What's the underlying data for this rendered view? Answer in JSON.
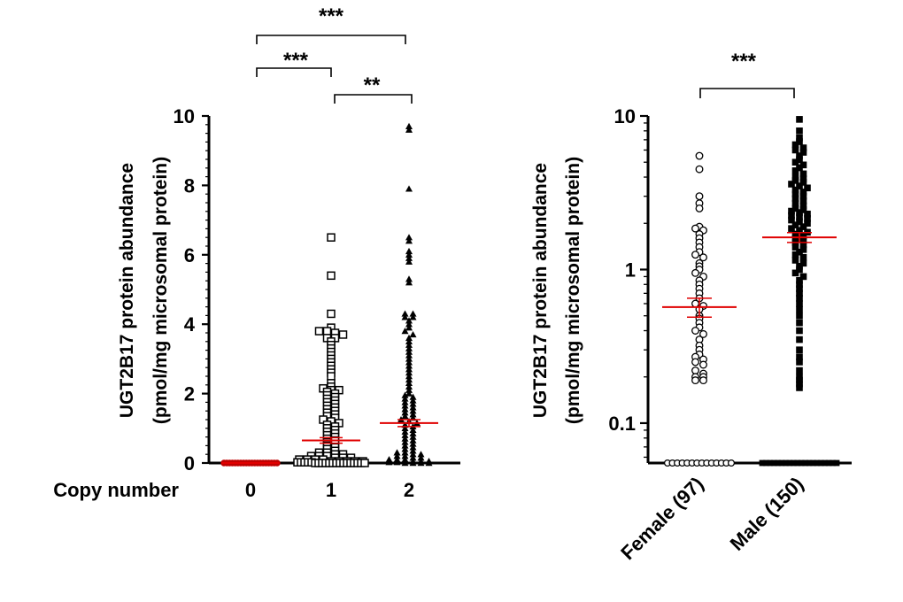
{
  "chart_data": [
    {
      "type": "scatter",
      "title": "",
      "xlabel": "Copy number",
      "ylabel": "UGT2B17 protein abundance",
      "ylabel_sub": "(pmol/mg microsomal protein)",
      "categories": [
        "0",
        "1",
        "2"
      ],
      "ylim": [
        0,
        10
      ],
      "yticks": [
        "0",
        "2",
        "4",
        "6",
        "8",
        "10"
      ],
      "significance": [
        {
          "from": "0",
          "to": "2",
          "label": "***"
        },
        {
          "from": "0",
          "to": "1",
          "label": "***"
        },
        {
          "from": "1",
          "to": "2",
          "label": "**"
        }
      ],
      "series": [
        {
          "name": "0",
          "marker": "circle-filled",
          "n": 20,
          "mean": 0.0,
          "sem": 0.0,
          "values": [
            0,
            0,
            0,
            0,
            0,
            0,
            0,
            0,
            0,
            0,
            0,
            0,
            0,
            0,
            0,
            0,
            0,
            0,
            0,
            0
          ]
        },
        {
          "name": "1",
          "marker": "square-open",
          "n": 140,
          "mean": 0.65,
          "sem": 0.08,
          "values": [
            6.5,
            5.4,
            4.3,
            3.9,
            3.8,
            3.8,
            3.75,
            3.7,
            3.6,
            3.6,
            3.5,
            3.4,
            3.3,
            3.2,
            3.1,
            3.0,
            2.9,
            2.8,
            2.7,
            2.6,
            2.5,
            2.3,
            2.2,
            2.15,
            2.1,
            2.1,
            2.05,
            2.0,
            1.95,
            1.9,
            1.85,
            1.8,
            1.75,
            1.7,
            1.65,
            1.6,
            1.55,
            1.5,
            1.45,
            1.4,
            1.35,
            1.3,
            1.25,
            1.2,
            1.15,
            1.1,
            1.05,
            1.0,
            0.95,
            0.9,
            0.85,
            0.8,
            0.75,
            0.7,
            0.65,
            0.6,
            0.55,
            0.5,
            0.45,
            0.4,
            0.35,
            0.3,
            0.3,
            0.25,
            0.25,
            0.2,
            0.2,
            0.2,
            0.15,
            0.15,
            0.15,
            0.1,
            0.1,
            0.1,
            0.1,
            0.05,
            0.05,
            0.05,
            0.05,
            0.05,
            0.02,
            0.02,
            0.02,
            0.02,
            0.02,
            0,
            0,
            0,
            0,
            0,
            0,
            0,
            0,
            0,
            0,
            0,
            0,
            0,
            0,
            0
          ]
        },
        {
          "name": "2",
          "marker": "triangle-filled",
          "n": 120,
          "mean": 1.15,
          "sem": 0.1,
          "values": [
            9.7,
            9.6,
            7.9,
            6.5,
            6.4,
            6.1,
            6.0,
            5.9,
            5.8,
            5.3,
            5.2,
            4.3,
            4.3,
            4.2,
            4.2,
            4.1,
            4.0,
            3.9,
            3.8,
            3.7,
            3.6,
            3.5,
            3.4,
            3.3,
            3.2,
            3.1,
            3.0,
            2.9,
            2.8,
            2.7,
            2.6,
            2.5,
            2.4,
            2.3,
            2.2,
            2.1,
            2.0,
            1.95,
            1.9,
            1.85,
            1.8,
            1.75,
            1.7,
            1.65,
            1.6,
            1.55,
            1.5,
            1.45,
            1.4,
            1.35,
            1.3,
            1.25,
            1.2,
            1.15,
            1.1,
            1.05,
            1.0,
            0.95,
            0.9,
            0.85,
            0.8,
            0.75,
            0.7,
            0.65,
            0.6,
            0.55,
            0.5,
            0.45,
            0.4,
            0.35,
            0.3,
            0.3,
            0.25,
            0.25,
            0.2,
            0.2,
            0.15,
            0.15,
            0.1,
            0.1,
            0.1,
            0.05,
            0.05,
            0.05,
            0.02,
            0.02,
            0,
            0,
            0,
            0
          ]
        }
      ]
    },
    {
      "type": "scatter",
      "title": "",
      "xlabel": "",
      "ylabel": "UGT2B17 protein abundance",
      "ylabel_sub": "(pmol/mg microsomal protein)",
      "yscale": "log",
      "categories": [
        "Female (97)",
        "Male (150)"
      ],
      "ylim": [
        0.055,
        10
      ],
      "yticks": [
        "0.1",
        "1",
        "10"
      ],
      "ytick_values": [
        0.1,
        1,
        10
      ],
      "significance": [
        {
          "from": "Female (97)",
          "to": "Male (150)",
          "label": "***"
        }
      ],
      "series": [
        {
          "name": "Female (97)",
          "marker": "circle-open",
          "n": 97,
          "mean": 0.57,
          "sem": 0.08,
          "floor": 0.055,
          "floor_count": 14,
          "values": [
            5.5,
            4.5,
            3.0,
            2.7,
            2.5,
            1.9,
            1.85,
            1.8,
            1.7,
            1.6,
            1.5,
            1.4,
            1.3,
            1.25,
            1.2,
            1.1,
            1.05,
            1.0,
            0.95,
            0.9,
            0.85,
            0.8,
            0.75,
            0.7,
            0.65,
            0.6,
            0.58,
            0.55,
            0.5,
            0.48,
            0.45,
            0.42,
            0.4,
            0.38,
            0.35,
            0.32,
            0.3,
            0.28,
            0.27,
            0.26,
            0.25,
            0.24,
            0.22,
            0.21,
            0.2,
            0.2,
            0.19,
            0.19
          ]
        },
        {
          "name": "Male (150)",
          "marker": "square-filled",
          "n": 150,
          "mean": 1.62,
          "sem": 0.12,
          "floor": 0.055,
          "floor_count": 20,
          "values": [
            9.5,
            8.0,
            7.2,
            6.8,
            6.5,
            6.2,
            6.0,
            5.8,
            5.5,
            5.2,
            5.0,
            4.8,
            4.6,
            4.4,
            4.2,
            4.0,
            3.9,
            3.8,
            3.7,
            3.6,
            3.5,
            3.4,
            3.3,
            3.2,
            3.1,
            3.0,
            2.9,
            2.8,
            2.7,
            2.6,
            2.5,
            2.45,
            2.4,
            2.35,
            2.3,
            2.25,
            2.2,
            2.15,
            2.1,
            2.05,
            2.0,
            1.95,
            1.9,
            1.85,
            1.8,
            1.75,
            1.7,
            1.65,
            1.6,
            1.55,
            1.5,
            1.45,
            1.4,
            1.35,
            1.3,
            1.25,
            1.2,
            1.15,
            1.1,
            1.05,
            1.0,
            0.95,
            0.9,
            0.85,
            0.8,
            0.75,
            0.7,
            0.65,
            0.6,
            0.55,
            0.5,
            0.45,
            0.4,
            0.35,
            0.3,
            0.27,
            0.25,
            0.22,
            0.2,
            0.19,
            0.18,
            0.17
          ]
        }
      ]
    }
  ]
}
